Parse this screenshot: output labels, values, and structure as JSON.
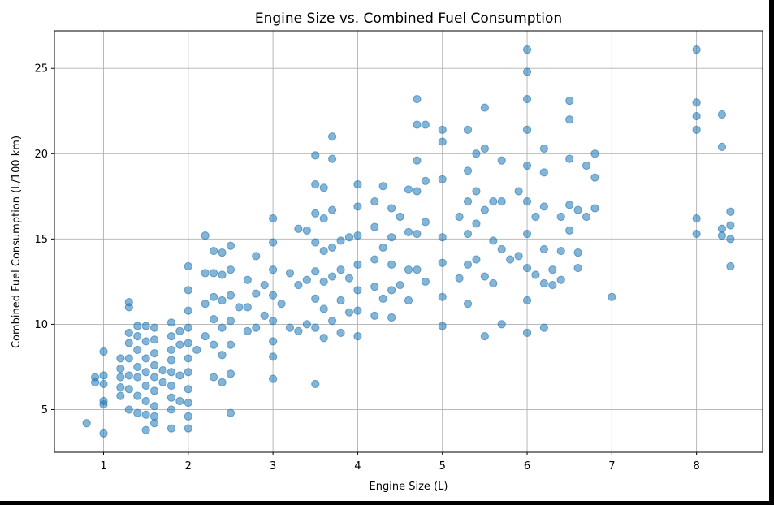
{
  "chart_data": {
    "type": "scatter",
    "title": "Engine Size vs. Combined Fuel Consumption",
    "xlabel": "Engine Size (L)",
    "ylabel": "Combined Fuel Consumption (L/100 km)",
    "xlim": [
      0.42,
      8.78
    ],
    "ylim": [
      2.5,
      27.2
    ],
    "xticks": [
      1,
      2,
      3,
      4,
      5,
      6,
      7,
      8
    ],
    "yticks": [
      5,
      10,
      15,
      20,
      25
    ],
    "grid": true,
    "marker_color": "#1f77b4",
    "marker_alpha": 0.55,
    "series": [
      {
        "x": [
          0.8,
          0.9,
          0.9,
          1.0,
          1.0,
          1.0,
          1.0,
          1.0,
          1.0,
          1.2,
          1.2,
          1.2,
          1.2,
          1.2,
          1.3,
          1.3,
          1.3,
          1.3,
          1.3,
          1.3,
          1.3,
          1.3,
          1.4,
          1.4,
          1.4,
          1.4,
          1.4,
          1.4,
          1.4,
          1.5,
          1.5,
          1.5,
          1.5,
          1.5,
          1.5,
          1.5,
          1.5,
          1.6,
          1.6,
          1.6,
          1.6,
          1.6,
          1.6,
          1.6,
          1.6,
          1.6,
          1.7,
          1.7,
          1.8,
          1.8,
          1.8,
          1.8,
          1.8,
          1.8,
          1.8,
          1.8,
          1.8,
          1.9,
          1.9,
          1.9,
          1.9,
          2.0,
          2.0,
          2.0,
          2.0,
          2.0,
          2.0,
          2.0,
          2.0,
          2.0,
          2.0,
          2.0,
          2.1,
          2.2,
          2.2,
          2.2,
          2.2,
          2.3,
          2.3,
          2.3,
          2.3,
          2.3,
          2.3,
          2.4,
          2.4,
          2.4,
          2.4,
          2.4,
          2.4,
          2.5,
          2.5,
          2.5,
          2.5,
          2.5,
          2.5,
          2.5,
          2.6,
          2.7,
          2.7,
          2.7,
          2.8,
          2.8,
          2.8,
          2.9,
          2.9,
          3.0,
          3.0,
          3.0,
          3.0,
          3.0,
          3.0,
          3.0,
          3.0,
          3.1,
          3.2,
          3.2,
          3.3,
          3.3,
          3.3,
          3.4,
          3.4,
          3.4,
          3.5,
          3.5,
          3.5,
          3.5,
          3.5,
          3.5,
          3.5,
          3.5,
          3.6,
          3.6,
          3.6,
          3.6,
          3.6,
          3.6,
          3.7,
          3.7,
          3.7,
          3.7,
          3.7,
          3.7,
          3.8,
          3.8,
          3.8,
          3.8,
          3.9,
          3.9,
          3.9,
          4.0,
          4.0,
          4.0,
          4.0,
          4.0,
          4.0,
          4.0,
          4.2,
          4.2,
          4.2,
          4.2,
          4.2,
          4.3,
          4.3,
          4.3,
          4.4,
          4.4,
          4.4,
          4.4,
          4.4,
          4.5,
          4.5,
          4.6,
          4.6,
          4.6,
          4.6,
          4.7,
          4.7,
          4.7,
          4.7,
          4.7,
          4.7,
          4.8,
          4.8,
          4.8,
          4.8,
          5.0,
          5.0,
          5.0,
          5.0,
          5.0,
          5.0,
          5.0,
          5.2,
          5.2,
          5.3,
          5.3,
          5.3,
          5.3,
          5.3,
          5.3,
          5.4,
          5.4,
          5.4,
          5.4,
          5.5,
          5.5,
          5.5,
          5.5,
          5.5,
          5.6,
          5.6,
          5.6,
          5.7,
          5.7,
          5.7,
          5.7,
          5.8,
          5.9,
          5.9,
          6.0,
          6.0,
          6.0,
          6.0,
          6.0,
          6.0,
          6.0,
          6.0,
          6.0,
          6.0,
          6.1,
          6.1,
          6.2,
          6.2,
          6.2,
          6.2,
          6.2,
          6.2,
          6.3,
          6.3,
          6.4,
          6.4,
          6.4,
          6.5,
          6.5,
          6.5,
          6.5,
          6.5,
          6.6,
          6.6,
          6.6,
          6.7,
          6.7,
          6.8,
          6.8,
          6.8,
          7.0,
          8.0,
          8.0,
          8.0,
          8.0,
          8.0,
          8.0,
          8.3,
          8.3,
          8.3,
          8.3,
          8.4,
          8.4,
          8.4,
          8.4
        ],
        "y": [
          4.2,
          6.9,
          6.6,
          8.4,
          7.0,
          6.5,
          5.5,
          5.3,
          3.6,
          8.0,
          7.4,
          6.9,
          6.3,
          5.8,
          11.3,
          11.0,
          9.5,
          8.9,
          8.0,
          7.0,
          6.2,
          5.0,
          9.9,
          9.3,
          8.5,
          7.5,
          6.9,
          5.8,
          4.8,
          9.9,
          9.0,
          8.0,
          7.2,
          6.4,
          5.5,
          4.7,
          3.8,
          9.8,
          9.1,
          8.3,
          7.6,
          6.9,
          6.1,
          5.2,
          4.6,
          4.2,
          7.3,
          6.6,
          10.1,
          9.3,
          8.5,
          7.9,
          7.2,
          6.4,
          5.7,
          5.0,
          3.9,
          9.6,
          8.8,
          7.0,
          5.5,
          13.4,
          12.0,
          10.8,
          9.8,
          8.9,
          8.0,
          7.2,
          6.2,
          5.4,
          4.6,
          3.9,
          8.5,
          15.2,
          13.0,
          11.2,
          9.3,
          14.3,
          13.0,
          11.6,
          10.3,
          8.8,
          6.9,
          14.2,
          12.9,
          11.4,
          9.8,
          8.2,
          6.6,
          14.6,
          13.2,
          11.7,
          10.2,
          8.8,
          7.1,
          4.8,
          11.0,
          12.6,
          11.0,
          9.6,
          14.0,
          11.8,
          9.8,
          12.3,
          10.5,
          16.2,
          14.8,
          13.2,
          11.7,
          10.2,
          9.0,
          8.1,
          6.8,
          11.2,
          13.0,
          9.8,
          15.6,
          12.3,
          9.6,
          15.5,
          12.6,
          10.0,
          19.9,
          18.2,
          16.5,
          14.8,
          13.1,
          11.5,
          9.8,
          6.5,
          18.0,
          16.2,
          14.3,
          12.5,
          10.9,
          9.2,
          21.0,
          19.7,
          16.7,
          14.5,
          12.8,
          10.2,
          14.9,
          13.2,
          11.4,
          9.5,
          15.1,
          12.7,
          10.7,
          18.2,
          16.9,
          15.2,
          13.5,
          12.0,
          10.8,
          9.3,
          17.2,
          15.7,
          13.8,
          12.2,
          10.5,
          18.1,
          14.5,
          11.5,
          16.8,
          15.1,
          13.5,
          12.0,
          10.4,
          16.3,
          12.3,
          17.9,
          15.4,
          13.2,
          11.4,
          23.2,
          21.7,
          19.6,
          17.8,
          15.3,
          13.2,
          21.7,
          18.4,
          16.0,
          12.5,
          21.4,
          20.7,
          18.5,
          15.1,
          13.6,
          11.6,
          9.9,
          16.3,
          12.7,
          21.4,
          19.0,
          17.2,
          15.3,
          13.5,
          11.2,
          20.0,
          17.8,
          15.9,
          13.8,
          22.7,
          20.3,
          16.7,
          12.8,
          9.3,
          17.2,
          14.9,
          12.4,
          19.6,
          17.2,
          14.4,
          10.0,
          13.8,
          17.8,
          14.0,
          26.1,
          24.8,
          23.2,
          21.4,
          19.3,
          17.2,
          15.3,
          13.3,
          11.4,
          9.5,
          16.3,
          12.9,
          20.3,
          18.9,
          16.9,
          14.4,
          12.4,
          9.8,
          13.2,
          12.3,
          16.3,
          14.3,
          12.6,
          23.1,
          22.0,
          19.7,
          17.0,
          15.5,
          16.7,
          14.2,
          13.3,
          19.3,
          16.3,
          20.0,
          18.6,
          16.8,
          11.6,
          26.1,
          23.0,
          22.2,
          21.4,
          16.2,
          15.3,
          22.3,
          20.4,
          15.6,
          15.2,
          16.6,
          15.8,
          15.0,
          13.4
        ]
      }
    ]
  }
}
